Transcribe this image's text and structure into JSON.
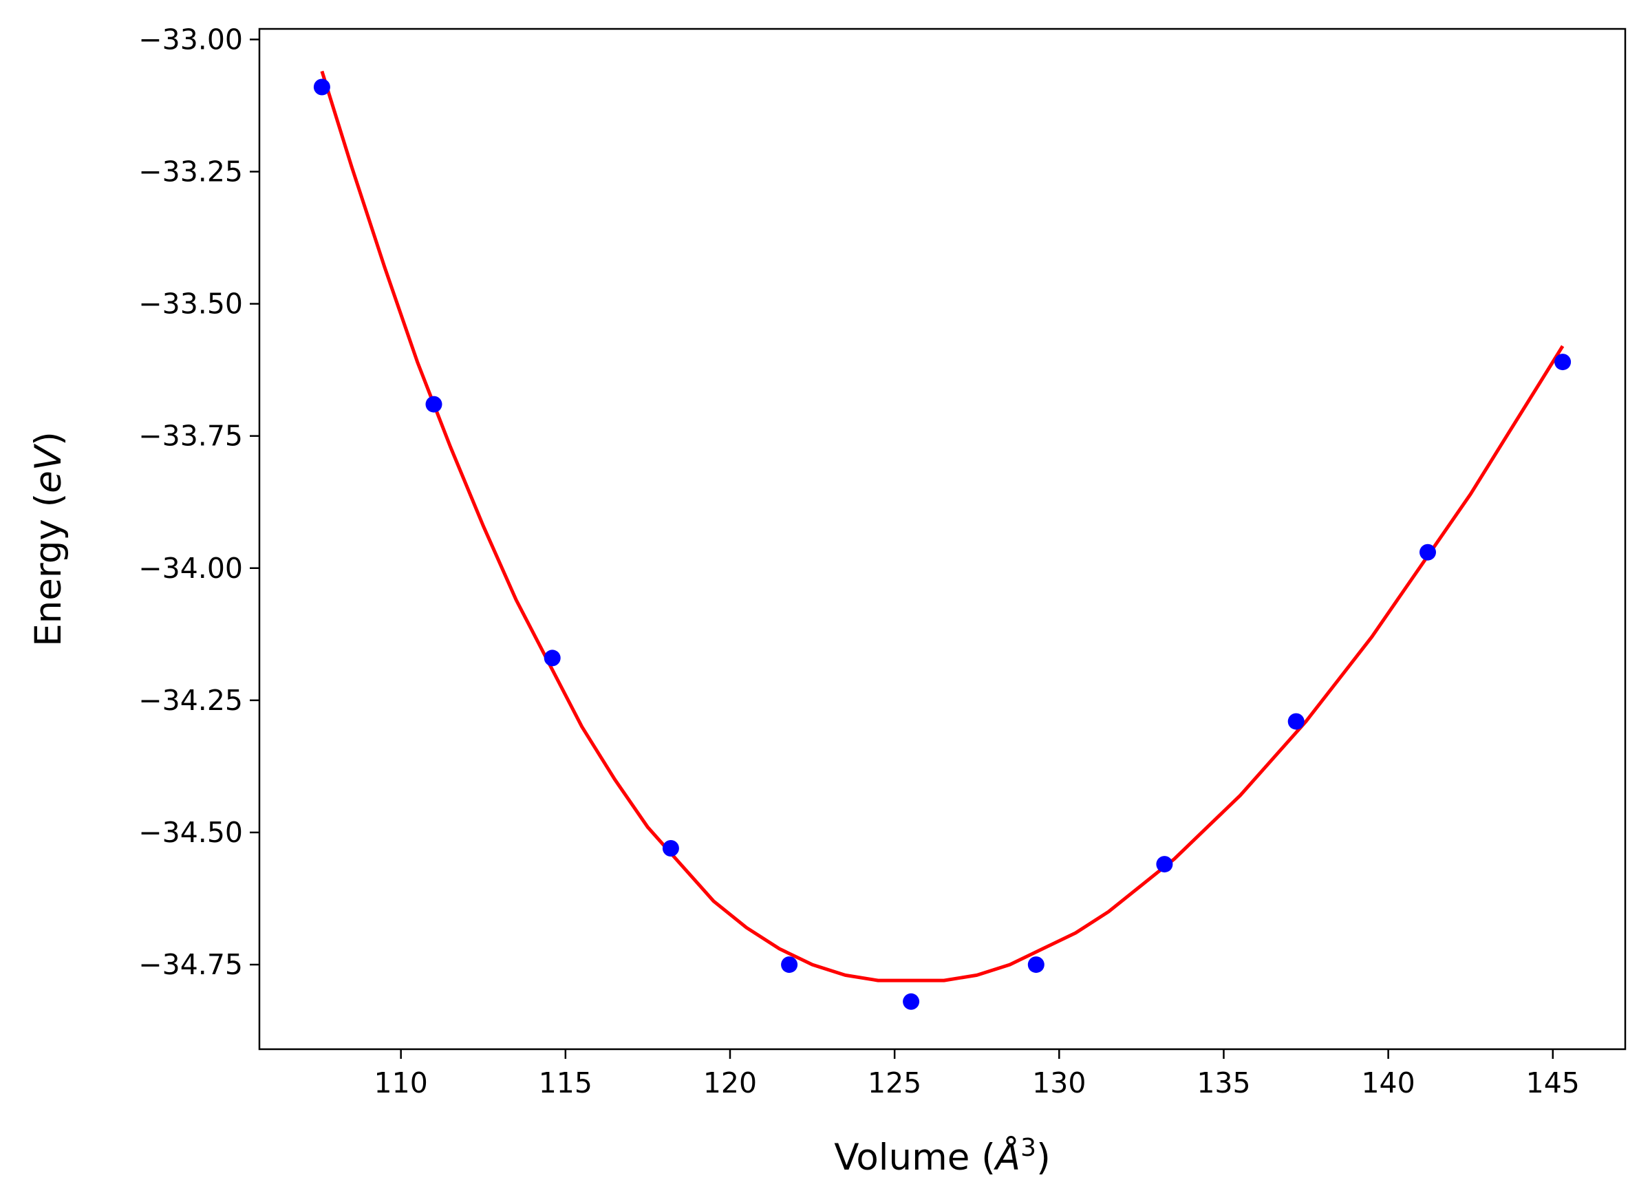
{
  "chart_data": {
    "type": "scatter",
    "title": "",
    "xlabel": {
      "prefix": "Volume (",
      "symbol": "Å",
      "power": "3",
      "suffix": ")"
    },
    "ylabel": {
      "prefix": "Energy (",
      "symbol": "eV",
      "suffix": ")"
    },
    "xlim": [
      105.7,
      147.2
    ],
    "ylim": [
      -34.91,
      -32.98
    ],
    "xticks": [
      110,
      115,
      120,
      125,
      130,
      135,
      140,
      145
    ],
    "xtick_labels": [
      "110",
      "115",
      "120",
      "125",
      "130",
      "135",
      "140",
      "145"
    ],
    "yticks": [
      -33.0,
      -33.25,
      -33.5,
      -33.75,
      -34.0,
      -34.25,
      -34.5,
      -34.75
    ],
    "ytick_labels": [
      "−33.00",
      "−33.25",
      "−33.50",
      "−33.75",
      "−34.00",
      "−34.25",
      "−34.50",
      "−34.75"
    ],
    "grid": false,
    "series": [
      {
        "kind": "points",
        "color": "#0000ff",
        "x": [
          107.6,
          111.0,
          114.6,
          118.2,
          121.8,
          125.5,
          129.3,
          133.2,
          137.2,
          141.2,
          145.3
        ],
        "y": [
          -33.09,
          -33.69,
          -34.17,
          -34.53,
          -34.75,
          -34.82,
          -34.75,
          -34.56,
          -34.29,
          -33.97,
          -33.61
        ]
      },
      {
        "kind": "fit-curve",
        "color": "#ff0000",
        "x": [
          107.6,
          108.5,
          109.5,
          110.5,
          111.5,
          112.5,
          113.5,
          114.5,
          115.5,
          116.5,
          117.5,
          118.5,
          119.5,
          120.5,
          121.5,
          122.5,
          123.5,
          124.5,
          125.5,
          126.5,
          127.5,
          128.5,
          129.5,
          130.5,
          131.5,
          132.5,
          133.5,
          134.5,
          135.5,
          136.5,
          137.5,
          138.5,
          139.5,
          140.5,
          141.5,
          142.5,
          143.5,
          144.5,
          145.3
        ],
        "y": [
          -33.06,
          -33.24,
          -33.43,
          -33.61,
          -33.77,
          -33.92,
          -34.06,
          -34.18,
          -34.3,
          -34.4,
          -34.49,
          -34.56,
          -34.63,
          -34.68,
          -34.72,
          -34.75,
          -34.77,
          -34.78,
          -34.78,
          -34.78,
          -34.77,
          -34.75,
          -34.72,
          -34.69,
          -34.65,
          -34.6,
          -34.55,
          -34.49,
          -34.43,
          -34.36,
          -34.29,
          -34.21,
          -34.13,
          -34.04,
          -33.95,
          -33.86,
          -33.76,
          -33.66,
          -33.58
        ]
      }
    ]
  }
}
